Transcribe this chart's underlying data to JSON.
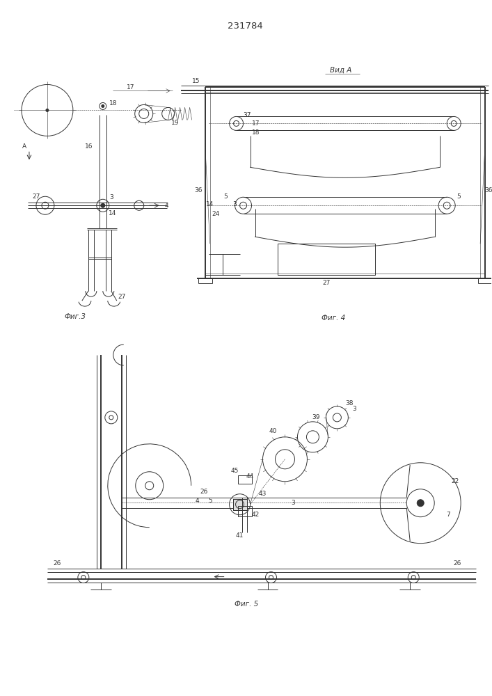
{
  "title": "231784",
  "fig3_label": "Фиг.3",
  "fig4_label": "Фиг. 4",
  "fig5_label": "Фиг. 5",
  "vida_label": "Вид А",
  "bg_color": "#ffffff",
  "line_color": "#333333",
  "lw": 0.7,
  "tlw": 0.4,
  "thickw": 1.4
}
